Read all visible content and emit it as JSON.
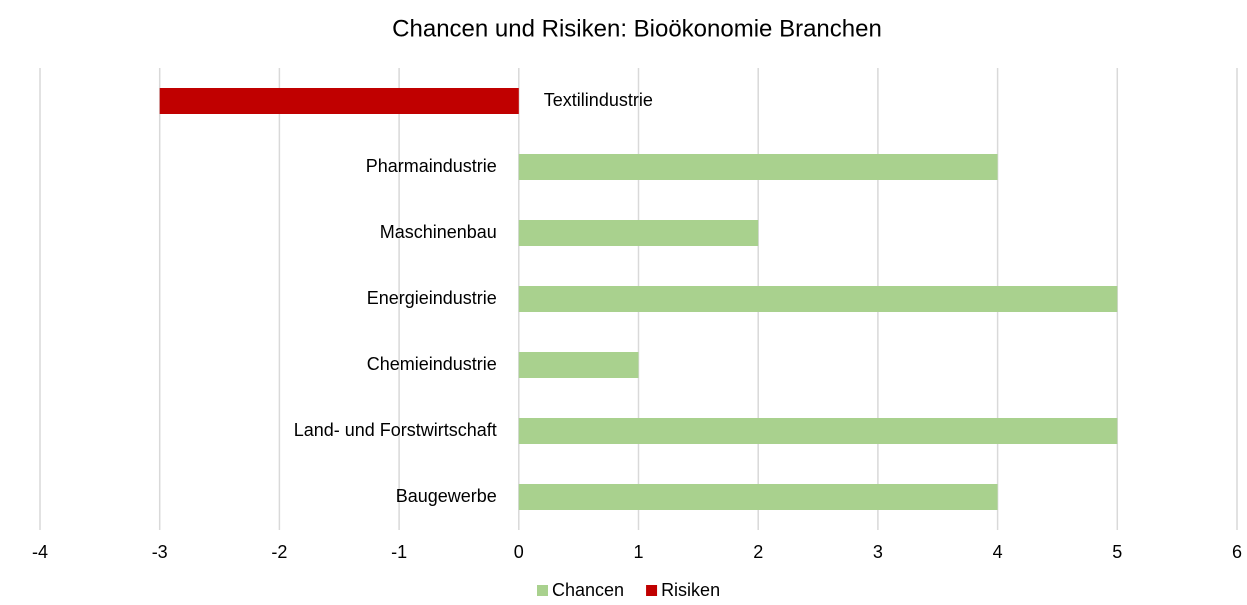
{
  "chart_data": {
    "type": "bar",
    "orientation": "horizontal",
    "title": "Chancen und Risiken: Bioökonomie Branchen",
    "categories": [
      "Textilindustrie",
      "Pharmaindustrie",
      "Maschinenbau",
      "Energieindustrie",
      "Chemieindustrie",
      "Land- und Forstwirtschaft",
      "Baugewerbe"
    ],
    "series": [
      {
        "name": "Chancen",
        "color": "#a9d18e",
        "values": [
          null,
          4,
          2,
          5,
          1,
          5,
          4
        ]
      },
      {
        "name": "Risiken",
        "color": "#c00000",
        "values": [
          -3,
          null,
          null,
          null,
          null,
          null,
          null
        ]
      }
    ],
    "xlim": [
      -4,
      6
    ],
    "xticks": [
      -4,
      -3,
      -2,
      -1,
      0,
      1,
      2,
      3,
      4,
      5,
      6
    ],
    "grid": true,
    "legend": "bottom"
  }
}
